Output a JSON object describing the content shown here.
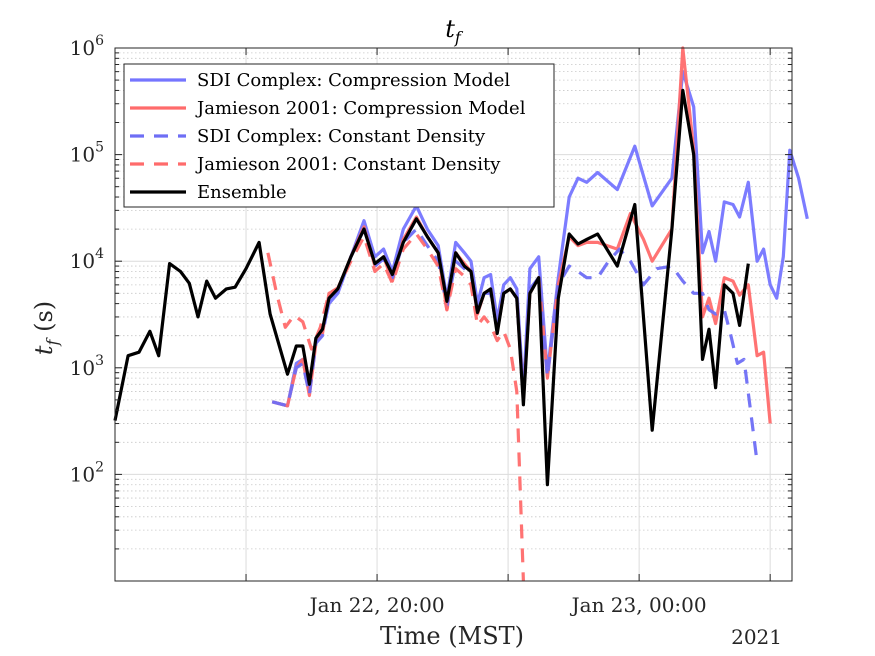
{
  "chart_data": {
    "type": "line",
    "title": "t",
    "title_subscript": "f",
    "xlabel": "Time (MST)",
    "ylabel_main": "t",
    "ylabel_subscript": "f",
    "ylabel_unit": " (s)",
    "yscale": "log",
    "ylim": [
      10,
      1000000
    ],
    "xlim_hours": [
      0,
      31
    ],
    "year_label": "2021",
    "x_tick_hours": [
      6,
      12,
      18,
      24,
      30
    ],
    "x_tick_labels": [
      {
        "hour": 12,
        "text": "Jan 22, 20:00"
      },
      {
        "hour": 24,
        "text": "Jan 23, 00:00"
      }
    ],
    "y_ticks": [
      {
        "value": 100,
        "base": "10",
        "exp": "2"
      },
      {
        "value": 1000,
        "base": "10",
        "exp": "3"
      },
      {
        "value": 10000,
        "base": "10",
        "exp": "4"
      },
      {
        "value": 100000,
        "base": "10",
        "exp": "5"
      },
      {
        "value": 1000000,
        "base": "10",
        "exp": "6"
      }
    ],
    "grid": true,
    "legend_position": "top-left",
    "series": [
      {
        "name": "SDI Complex: Compression Model",
        "color": "#7575ff",
        "dash": "solid",
        "points": [
          [
            7.2,
            480
          ],
          [
            7.9,
            440
          ],
          [
            8.3,
            1100
          ],
          [
            8.6,
            1200
          ],
          [
            8.9,
            600
          ],
          [
            9.2,
            1800
          ],
          [
            9.5,
            2200
          ],
          [
            9.8,
            4000
          ],
          [
            10.2,
            5000
          ],
          [
            10.8,
            11000
          ],
          [
            11.4,
            24000
          ],
          [
            11.9,
            11000
          ],
          [
            12.3,
            13000
          ],
          [
            12.7,
            8000
          ],
          [
            13.2,
            20000
          ],
          [
            13.8,
            33000
          ],
          [
            14.3,
            20000
          ],
          [
            14.8,
            14000
          ],
          [
            15.2,
            4500
          ],
          [
            15.6,
            15000
          ],
          [
            16.0,
            12000
          ],
          [
            16.3,
            10000
          ],
          [
            16.6,
            4000
          ],
          [
            16.9,
            7000
          ],
          [
            17.2,
            7500
          ],
          [
            17.5,
            2800
          ],
          [
            17.8,
            6000
          ],
          [
            18.1,
            7000
          ],
          [
            18.4,
            5500
          ],
          [
            18.7,
            600
          ],
          [
            19.0,
            8500
          ],
          [
            19.4,
            11000
          ],
          [
            19.8,
            900
          ],
          [
            20.3,
            7000
          ],
          [
            20.8,
            40000
          ],
          [
            21.2,
            60000
          ],
          [
            21.6,
            55000
          ],
          [
            22.1,
            68000
          ],
          [
            23.0,
            47000
          ],
          [
            23.8,
            120000
          ],
          [
            24.6,
            33000
          ],
          [
            25.5,
            60000
          ],
          [
            26.0,
            600000
          ],
          [
            26.5,
            280000
          ],
          [
            26.9,
            12000
          ],
          [
            27.2,
            19000
          ],
          [
            27.5,
            10000
          ],
          [
            27.9,
            36000
          ],
          [
            28.3,
            34000
          ],
          [
            28.6,
            26000
          ],
          [
            29.0,
            55000
          ],
          [
            29.4,
            10000
          ],
          [
            29.7,
            13000
          ],
          [
            30.0,
            6000
          ],
          [
            30.3,
            4500
          ],
          [
            30.6,
            11000
          ],
          [
            30.9,
            110000
          ],
          [
            31.3,
            60000
          ],
          [
            31.7,
            25000
          ]
        ]
      },
      {
        "name": "Jamieson 2001: Compression Model",
        "color": "#ff6b6b",
        "dash": "solid",
        "points": [
          [
            7.2,
            480
          ],
          [
            7.9,
            440
          ],
          [
            8.3,
            1000
          ],
          [
            8.6,
            1200
          ],
          [
            8.9,
            550
          ],
          [
            9.2,
            1700
          ],
          [
            9.5,
            2100
          ],
          [
            9.8,
            5000
          ],
          [
            10.2,
            5500
          ],
          [
            10.8,
            11000
          ],
          [
            11.4,
            21000
          ],
          [
            11.9,
            9000
          ],
          [
            12.3,
            11000
          ],
          [
            12.7,
            6500
          ],
          [
            13.2,
            16000
          ],
          [
            13.8,
            26000
          ],
          [
            14.3,
            17000
          ],
          [
            14.8,
            12000
          ],
          [
            15.2,
            3500
          ],
          [
            15.6,
            12000
          ],
          [
            16.0,
            9500
          ],
          [
            16.3,
            8000
          ],
          [
            16.6,
            3200
          ],
          [
            16.9,
            5000
          ],
          [
            17.2,
            5500
          ],
          [
            17.5,
            2200
          ],
          [
            17.8,
            5000
          ],
          [
            18.1,
            5500
          ],
          [
            18.4,
            4500
          ],
          [
            18.7,
            500
          ],
          [
            19.0,
            5000
          ],
          [
            19.4,
            7000
          ],
          [
            19.8,
            800
          ],
          [
            20.3,
            6000
          ],
          [
            20.8,
            17000
          ],
          [
            21.2,
            14000
          ],
          [
            21.6,
            15000
          ],
          [
            22.1,
            15000
          ],
          [
            23.0,
            13000
          ],
          [
            23.6,
            28000
          ],
          [
            24.2,
            16000
          ],
          [
            24.6,
            10000
          ],
          [
            25.5,
            20000
          ],
          [
            26.0,
            1000000
          ],
          [
            26.5,
            110000
          ],
          [
            26.9,
            3000
          ],
          [
            27.2,
            4500
          ],
          [
            27.5,
            2600
          ],
          [
            27.9,
            7000
          ],
          [
            28.3,
            6500
          ],
          [
            28.6,
            4800
          ],
          [
            29.0,
            6000
          ],
          [
            29.4,
            1300
          ],
          [
            29.7,
            1400
          ],
          [
            30.0,
            300
          ]
        ]
      },
      {
        "name": "SDI Complex: Constant Density",
        "color": "#6e6ef5",
        "dash": "dashed",
        "points": [
          [
            7.2,
            480
          ],
          [
            7.9,
            440
          ],
          [
            8.3,
            1000
          ],
          [
            8.6,
            1100
          ],
          [
            8.9,
            560
          ],
          [
            9.2,
            1700
          ],
          [
            9.5,
            2000
          ],
          [
            9.8,
            4500
          ],
          [
            10.2,
            5200
          ],
          [
            10.8,
            11000
          ],
          [
            11.4,
            20000
          ],
          [
            11.9,
            9000
          ],
          [
            12.3,
            10500
          ],
          [
            12.7,
            7000
          ],
          [
            13.2,
            15000
          ],
          [
            13.8,
            20000
          ],
          [
            14.3,
            14000
          ],
          [
            14.8,
            10000
          ],
          [
            15.2,
            3800
          ],
          [
            15.6,
            10000
          ],
          [
            16.0,
            8500
          ],
          [
            16.3,
            7500
          ],
          [
            16.6,
            3500
          ],
          [
            16.9,
            5000
          ],
          [
            17.2,
            5000
          ],
          [
            17.5,
            2300
          ],
          [
            17.8,
            5000
          ],
          [
            18.1,
            5500
          ],
          [
            18.4,
            4500
          ],
          [
            18.7,
            520
          ],
          [
            19.0,
            5500
          ],
          [
            19.4,
            7000
          ],
          [
            19.8,
            820
          ],
          [
            20.3,
            6000
          ],
          [
            20.8,
            9000
          ],
          [
            21.2,
            8000
          ],
          [
            21.6,
            7000
          ],
          [
            22.1,
            7000
          ],
          [
            22.6,
            10000
          ],
          [
            23.1,
            13000
          ],
          [
            23.6,
            10000
          ],
          [
            24.2,
            6000
          ],
          [
            24.8,
            8500
          ],
          [
            25.5,
            9000
          ],
          [
            26.0,
            6500
          ],
          [
            26.5,
            5000
          ],
          [
            26.9,
            5000
          ],
          [
            27.2,
            3500
          ],
          [
            27.5,
            3200
          ],
          [
            27.9,
            3500
          ],
          [
            28.2,
            2000
          ],
          [
            28.5,
            1100
          ],
          [
            28.8,
            1200
          ],
          [
            29.1,
            400
          ],
          [
            29.4,
            130
          ]
        ]
      },
      {
        "name": "Jamieson 2001: Constant Density",
        "color": "#ff6b6b",
        "dash": "dashed",
        "points": [
          [
            7.0,
            12000
          ],
          [
            7.4,
            5000
          ],
          [
            7.8,
            2400
          ],
          [
            8.2,
            3100
          ],
          [
            8.6,
            2700
          ],
          [
            9.0,
            1500
          ],
          [
            9.4,
            2400
          ],
          [
            9.8,
            5000
          ],
          [
            10.2,
            5600
          ],
          [
            10.8,
            10000
          ],
          [
            11.4,
            17000
          ],
          [
            11.9,
            8000
          ],
          [
            12.3,
            9500
          ],
          [
            12.7,
            6200
          ],
          [
            13.2,
            13000
          ],
          [
            13.8,
            18000
          ],
          [
            14.3,
            13000
          ],
          [
            14.8,
            9000
          ],
          [
            15.2,
            3500
          ],
          [
            15.6,
            8500
          ],
          [
            16.0,
            7200
          ],
          [
            16.3,
            6000
          ],
          [
            16.6,
            2500
          ],
          [
            16.9,
            3000
          ],
          [
            17.2,
            2500
          ],
          [
            17.5,
            1800
          ],
          [
            17.8,
            2200
          ],
          [
            18.1,
            1500
          ],
          [
            18.4,
            600
          ],
          [
            18.7,
            10
          ]
        ]
      },
      {
        "name": "Ensemble",
        "color": "#000000",
        "dash": "solid",
        "points": [
          [
            0,
            320
          ],
          [
            0.6,
            1300
          ],
          [
            1.1,
            1400
          ],
          [
            1.6,
            2200
          ],
          [
            2.0,
            1300
          ],
          [
            2.5,
            9500
          ],
          [
            3.0,
            8000
          ],
          [
            3.4,
            6200
          ],
          [
            3.8,
            3000
          ],
          [
            4.2,
            6500
          ],
          [
            4.6,
            4500
          ],
          [
            5.1,
            5500
          ],
          [
            5.5,
            5700
          ],
          [
            6.0,
            8500
          ],
          [
            6.6,
            15000
          ],
          [
            7.1,
            3200
          ],
          [
            7.9,
            870
          ],
          [
            8.3,
            1600
          ],
          [
            8.6,
            1600
          ],
          [
            8.9,
            700
          ],
          [
            9.2,
            1900
          ],
          [
            9.5,
            2300
          ],
          [
            9.8,
            4500
          ],
          [
            10.2,
            5500
          ],
          [
            10.8,
            11000
          ],
          [
            11.4,
            20000
          ],
          [
            11.9,
            9500
          ],
          [
            12.3,
            11000
          ],
          [
            12.7,
            7500
          ],
          [
            13.2,
            15000
          ],
          [
            13.8,
            25000
          ],
          [
            14.3,
            17000
          ],
          [
            14.8,
            12000
          ],
          [
            15.2,
            4200
          ],
          [
            15.6,
            12000
          ],
          [
            16.0,
            9000
          ],
          [
            16.3,
            8000
          ],
          [
            16.6,
            3300
          ],
          [
            16.9,
            5000
          ],
          [
            17.2,
            5500
          ],
          [
            17.5,
            2100
          ],
          [
            17.8,
            5000
          ],
          [
            18.1,
            5500
          ],
          [
            18.4,
            4500
          ],
          [
            18.7,
            450
          ],
          [
            19.0,
            5000
          ],
          [
            19.4,
            7000
          ],
          [
            19.8,
            80
          ],
          [
            20.3,
            4500
          ],
          [
            20.8,
            18000
          ],
          [
            21.2,
            14500
          ],
          [
            21.6,
            16000
          ],
          [
            22.1,
            18000
          ],
          [
            23.0,
            9000
          ],
          [
            23.8,
            34000
          ],
          [
            24.6,
            260
          ],
          [
            25.5,
            20000
          ],
          [
            26.0,
            400000
          ],
          [
            26.5,
            100000
          ],
          [
            26.9,
            1200
          ],
          [
            27.2,
            2300
          ],
          [
            27.5,
            650
          ],
          [
            27.9,
            6000
          ],
          [
            28.3,
            5000
          ],
          [
            28.6,
            2500
          ],
          [
            29.0,
            9500
          ]
        ]
      }
    ]
  }
}
